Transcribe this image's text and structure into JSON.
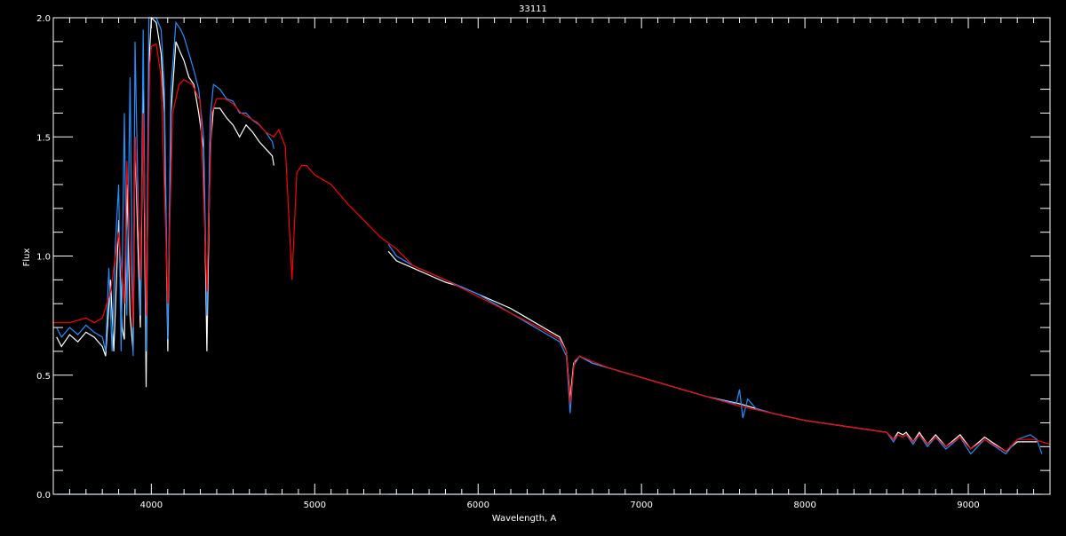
{
  "chart_data": {
    "type": "line",
    "title": "33111",
    "xlabel": "Wavelength, A",
    "ylabel": "Flux",
    "xlim": [
      3400,
      9500
    ],
    "ylim": [
      0.0,
      2.0
    ],
    "xticks": [
      "4000",
      "5000",
      "6000",
      "7000",
      "8000",
      "9000"
    ],
    "yticks": [
      "0.0",
      "0.5",
      "1.0",
      "1.5",
      "2.0"
    ],
    "grid": false,
    "background": "#000000",
    "series": [
      {
        "color": "#ffffff",
        "segments": [
          [
            [
              3420,
              0.66
            ],
            [
              3450,
              0.62
            ],
            [
              3500,
              0.67
            ],
            [
              3550,
              0.64
            ],
            [
              3600,
              0.68
            ],
            [
              3650,
              0.66
            ],
            [
              3700,
              0.62
            ],
            [
              3720,
              0.58
            ],
            [
              3750,
              0.9
            ],
            [
              3770,
              0.6
            ],
            [
              3800,
              1.15
            ],
            [
              3820,
              0.7
            ],
            [
              3835,
              0.65
            ],
            [
              3850,
              1.3
            ],
            [
              3870,
              0.75
            ],
            [
              3889,
              0.6
            ],
            [
              3900,
              1.5
            ],
            [
              3920,
              1.0
            ],
            [
              3933,
              0.7
            ],
            [
              3950,
              1.7
            ],
            [
              3968,
              0.45
            ],
            [
              3985,
              1.8
            ],
            [
              4000,
              2.0
            ],
            [
              4030,
              1.98
            ],
            [
              4060,
              1.85
            ],
            [
              4080,
              1.6
            ],
            [
              4101,
              0.6
            ],
            [
              4120,
              1.6
            ],
            [
              4150,
              1.9
            ],
            [
              4180,
              1.85
            ],
            [
              4200,
              1.82
            ],
            [
              4230,
              1.75
            ],
            [
              4260,
              1.72
            ],
            [
              4290,
              1.6
            ],
            [
              4320,
              1.45
            ],
            [
              4340,
              0.6
            ],
            [
              4360,
              1.45
            ],
            [
              4380,
              1.62
            ],
            [
              4420,
              1.62
            ],
            [
              4460,
              1.58
            ],
            [
              4500,
              1.55
            ],
            [
              4540,
              1.5
            ],
            [
              4580,
              1.55
            ],
            [
              4620,
              1.52
            ],
            [
              4660,
              1.48
            ],
            [
              4700,
              1.45
            ],
            [
              4740,
              1.42
            ],
            [
              4750,
              1.38
            ]
          ],
          [
            [
              5450,
              1.02
            ],
            [
              5500,
              0.98
            ],
            [
              5600,
              0.95
            ],
            [
              5700,
              0.92
            ],
            [
              5800,
              0.89
            ],
            [
              5900,
              0.87
            ],
            [
              6000,
              0.84
            ],
            [
              6100,
              0.81
            ],
            [
              6200,
              0.78
            ],
            [
              6300,
              0.74
            ],
            [
              6400,
              0.7
            ],
            [
              6500,
              0.66
            ],
            [
              6540,
              0.6
            ],
            [
              6563,
              0.4
            ],
            [
              6585,
              0.55
            ],
            [
              6620,
              0.58
            ],
            [
              6700,
              0.55
            ],
            [
              6800,
              0.53
            ],
            [
              6900,
              0.51
            ],
            [
              7000,
              0.49
            ],
            [
              7200,
              0.45
            ],
            [
              7400,
              0.41
            ],
            [
              7600,
              0.38
            ],
            [
              7700,
              0.36
            ],
            [
              7800,
              0.34
            ],
            [
              8000,
              0.31
            ],
            [
              8200,
              0.29
            ],
            [
              8400,
              0.27
            ],
            [
              8500,
              0.26
            ],
            [
              8542,
              0.23
            ],
            [
              8570,
              0.26
            ],
            [
              8600,
              0.25
            ],
            [
              8620,
              0.26
            ],
            [
              8662,
              0.22
            ],
            [
              8700,
              0.26
            ],
            [
              8750,
              0.21
            ],
            [
              8800,
              0.25
            ],
            [
              8863,
              0.2
            ],
            [
              8950,
              0.25
            ],
            [
              9015,
              0.19
            ],
            [
              9100,
              0.24
            ],
            [
              9230,
              0.18
            ],
            [
              9300,
              0.22
            ],
            [
              9420,
              0.22
            ]
          ]
        ]
      },
      {
        "color": "#1e90ff",
        "segments": [
          [
            [
              3420,
              0.7
            ],
            [
              3450,
              0.66
            ],
            [
              3500,
              0.7
            ],
            [
              3550,
              0.67
            ],
            [
              3600,
              0.71
            ],
            [
              3650,
              0.68
            ],
            [
              3700,
              0.66
            ],
            [
              3720,
              0.6
            ],
            [
              3740,
              0.95
            ],
            [
              3760,
              0.6
            ],
            [
              3780,
              1.05
            ],
            [
              3800,
              1.3
            ],
            [
              3815,
              0.6
            ],
            [
              3835,
              1.6
            ],
            [
              3850,
              0.75
            ],
            [
              3870,
              1.75
            ],
            [
              3889,
              0.58
            ],
            [
              3900,
              1.9
            ],
            [
              3920,
              1.2
            ],
            [
              3933,
              0.75
            ],
            [
              3950,
              1.95
            ],
            [
              3968,
              0.6
            ],
            [
              3985,
              2.0
            ],
            [
              4000,
              2.0
            ],
            [
              4030,
              2.0
            ],
            [
              4060,
              1.95
            ],
            [
              4080,
              1.7
            ],
            [
              4101,
              0.65
            ],
            [
              4120,
              1.7
            ],
            [
              4150,
              1.98
            ],
            [
              4180,
              1.95
            ],
            [
              4200,
              1.92
            ],
            [
              4230,
              1.85
            ],
            [
              4260,
              1.78
            ],
            [
              4290,
              1.7
            ],
            [
              4320,
              1.5
            ],
            [
              4340,
              0.75
            ],
            [
              4360,
              1.58
            ],
            [
              4380,
              1.72
            ],
            [
              4420,
              1.7
            ],
            [
              4460,
              1.66
            ],
            [
              4500,
              1.65
            ],
            [
              4540,
              1.6
            ],
            [
              4580,
              1.6
            ],
            [
              4620,
              1.57
            ],
            [
              4660,
              1.55
            ],
            [
              4700,
              1.52
            ],
            [
              4740,
              1.48
            ],
            [
              4750,
              1.45
            ]
          ],
          [
            [
              5450,
              1.05
            ],
            [
              5500,
              1.0
            ],
            [
              5600,
              0.96
            ],
            [
              5700,
              0.93
            ],
            [
              5800,
              0.9
            ],
            [
              5900,
              0.87
            ],
            [
              6000,
              0.84
            ],
            [
              6100,
              0.8
            ],
            [
              6200,
              0.76
            ],
            [
              6300,
              0.72
            ],
            [
              6400,
              0.68
            ],
            [
              6500,
              0.64
            ],
            [
              6540,
              0.58
            ],
            [
              6563,
              0.34
            ],
            [
              6585,
              0.54
            ],
            [
              6620,
              0.58
            ],
            [
              6700,
              0.55
            ],
            [
              6800,
              0.53
            ],
            [
              6900,
              0.51
            ],
            [
              7000,
              0.49
            ],
            [
              7200,
              0.45
            ],
            [
              7400,
              0.41
            ],
            [
              7580,
              0.38
            ],
            [
              7600,
              0.44
            ],
            [
              7620,
              0.32
            ],
            [
              7650,
              0.4
            ],
            [
              7700,
              0.36
            ],
            [
              7800,
              0.34
            ],
            [
              8000,
              0.31
            ],
            [
              8200,
              0.29
            ],
            [
              8400,
              0.27
            ],
            [
              8500,
              0.26
            ],
            [
              8542,
              0.22
            ],
            [
              8570,
              0.25
            ],
            [
              8600,
              0.24
            ],
            [
              8620,
              0.25
            ],
            [
              8662,
              0.21
            ],
            [
              8700,
              0.25
            ],
            [
              8750,
              0.2
            ],
            [
              8800,
              0.24
            ],
            [
              8863,
              0.19
            ],
            [
              8950,
              0.24
            ],
            [
              9015,
              0.17
            ],
            [
              9100,
              0.23
            ],
            [
              9230,
              0.17
            ],
            [
              9300,
              0.23
            ],
            [
              9380,
              0.25
            ],
            [
              9420,
              0.23
            ],
            [
              9450,
              0.17
            ]
          ]
        ]
      },
      {
        "color": "#ff0000",
        "segments": [
          [
            [
              3400,
              0.72
            ],
            [
              3500,
              0.72
            ],
            [
              3600,
              0.74
            ],
            [
              3650,
              0.72
            ],
            [
              3700,
              0.74
            ],
            [
              3750,
              0.85
            ],
            [
              3800,
              1.1
            ],
            [
              3835,
              0.8
            ],
            [
              3850,
              1.4
            ],
            [
              3889,
              0.7
            ],
            [
              3900,
              1.5
            ],
            [
              3933,
              0.9
            ],
            [
              3950,
              1.6
            ],
            [
              3970,
              0.75
            ],
            [
              3990,
              1.8
            ],
            [
              4000,
              1.88
            ],
            [
              4030,
              1.89
            ],
            [
              4060,
              1.75
            ],
            [
              4101,
              0.8
            ],
            [
              4130,
              1.6
            ],
            [
              4170,
              1.72
            ],
            [
              4200,
              1.74
            ],
            [
              4250,
              1.72
            ],
            [
              4300,
              1.65
            ],
            [
              4340,
              0.85
            ],
            [
              4370,
              1.6
            ],
            [
              4400,
              1.66
            ],
            [
              4450,
              1.66
            ],
            [
              4500,
              1.64
            ],
            [
              4550,
              1.6
            ],
            [
              4600,
              1.58
            ],
            [
              4650,
              1.56
            ],
            [
              4700,
              1.52
            ],
            [
              4750,
              1.5
            ],
            [
              4780,
              1.53
            ],
            [
              4820,
              1.46
            ],
            [
              4861,
              0.9
            ],
            [
              4890,
              1.35
            ],
            [
              4920,
              1.38
            ],
            [
              4950,
              1.38
            ],
            [
              5000,
              1.34
            ],
            [
              5100,
              1.3
            ],
            [
              5200,
              1.22
            ],
            [
              5300,
              1.15
            ],
            [
              5400,
              1.08
            ],
            [
              5500,
              1.03
            ],
            [
              5600,
              0.96
            ],
            [
              5800,
              0.9
            ],
            [
              6000,
              0.83
            ],
            [
              6200,
              0.76
            ],
            [
              6400,
              0.69
            ],
            [
              6500,
              0.65
            ],
            [
              6540,
              0.6
            ],
            [
              6563,
              0.38
            ],
            [
              6590,
              0.56
            ],
            [
              6620,
              0.58
            ],
            [
              6800,
              0.53
            ],
            [
              7000,
              0.49
            ],
            [
              7200,
              0.45
            ],
            [
              7400,
              0.41
            ],
            [
              7600,
              0.37
            ],
            [
              7800,
              0.34
            ],
            [
              8000,
              0.31
            ],
            [
              8200,
              0.29
            ],
            [
              8400,
              0.27
            ],
            [
              8500,
              0.26
            ],
            [
              8542,
              0.23
            ],
            [
              8570,
              0.25
            ],
            [
              8600,
              0.24
            ],
            [
              8620,
              0.25
            ],
            [
              8662,
              0.22
            ],
            [
              8700,
              0.25
            ],
            [
              8750,
              0.21
            ],
            [
              8800,
              0.24
            ],
            [
              8863,
              0.2
            ],
            [
              8950,
              0.24
            ],
            [
              9015,
              0.19
            ],
            [
              9100,
              0.23
            ],
            [
              9230,
              0.18
            ],
            [
              9300,
              0.23
            ],
            [
              9400,
              0.23
            ],
            [
              9500,
              0.21
            ]
          ]
        ]
      },
      {
        "color": "#1e90ff",
        "segments": [
          [
            [
              3420,
              0.0
            ],
            [
              4750,
              0.0
            ]
          ],
          [
            [
              5450,
              0.0
            ],
            [
              9450,
              0.0
            ]
          ]
        ]
      }
    ]
  }
}
